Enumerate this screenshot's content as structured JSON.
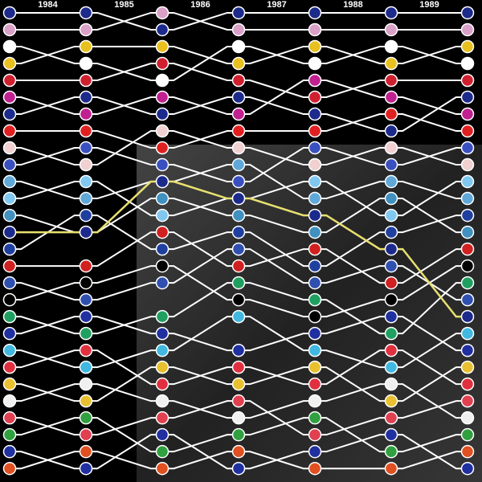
{
  "chart_data": {
    "type": "bump",
    "categories": [
      "1984",
      "1985",
      "1986",
      "1987",
      "1988",
      "1989",
      null
    ],
    "ylim": [
      0.24,
      28.8
    ],
    "y_reversed": true,
    "series": [
      {
        "color": "#ffffff",
        "blade": "#1c2a8c",
        "values": [
          1,
          1,
          2,
          1,
          1,
          1,
          1
        ]
      },
      {
        "color": "#ffffff",
        "blade": "#d9a0c8",
        "values": [
          2,
          2,
          1,
          2,
          2,
          2,
          2
        ]
      },
      {
        "color": "#ffffff",
        "blade": "#ffffff",
        "values": [
          3,
          4,
          5,
          3,
          4,
          3,
          4
        ]
      },
      {
        "color": "#ffffff",
        "blade": "#e8c020",
        "values": [
          4,
          3,
          3,
          4,
          3,
          4,
          3
        ]
      },
      {
        "color": "#ffffff",
        "blade": "#d02030",
        "values": [
          5,
          5,
          4,
          5,
          6,
          5,
          5
        ]
      },
      {
        "color": "#ffffff",
        "blade": "#c02090",
        "values": [
          6,
          7,
          6,
          7,
          5,
          6,
          7
        ]
      },
      {
        "color": "#ffffff",
        "blade": "#1c2a8c",
        "values": [
          7,
          6,
          7,
          6,
          7,
          8,
          6
        ]
      },
      {
        "color": "#ffffff",
        "blade": "#e02020",
        "values": [
          8,
          8,
          9,
          8,
          8,
          7,
          8
        ]
      },
      {
        "color": "#ffffff",
        "blade": "#f0d0d0",
        "values": [
          9,
          10,
          8,
          9,
          10,
          9,
          10
        ]
      },
      {
        "color": "#ffffff",
        "blade": "#3a50c0",
        "values": [
          10,
          9,
          10,
          11,
          9,
          10,
          9
        ]
      },
      {
        "color": "#ffffff",
        "blade": "#60a8d8",
        "values": [
          11,
          12,
          11,
          10,
          12,
          11,
          12
        ]
      },
      {
        "color": "#ffffff",
        "blade": "#80c8f0",
        "values": [
          12,
          11,
          13,
          12,
          11,
          13,
          11
        ]
      },
      {
        "color": "#ffffff",
        "blade": "#4090c0",
        "values": [
          13,
          14,
          12,
          13,
          14,
          12,
          14
        ]
      },
      {
        "color": "#e8e070",
        "blade": "#1c2a8c",
        "values": [
          14,
          14,
          11,
          12,
          13,
          15,
          19
        ]
      },
      {
        "color": "#ffffff",
        "blade": "#2040a0",
        "values": [
          15,
          13,
          15,
          14,
          16,
          14,
          13
        ]
      },
      {
        "color": "#ffffff",
        "blade": "#d02020",
        "values": [
          16,
          16,
          14,
          16,
          15,
          17,
          15
        ]
      },
      {
        "color": "#ffffff",
        "blade": "#3050b0",
        "values": [
          17,
          18,
          17,
          15,
          17,
          16,
          18
        ]
      },
      {
        "color": "#ffffff",
        "blade": "#000000",
        "values": [
          18,
          17,
          16,
          18,
          19,
          18,
          16
        ]
      },
      {
        "color": "#ffffff",
        "blade": "#20a060",
        "values": [
          19,
          20,
          19,
          17,
          18,
          20,
          17
        ]
      },
      {
        "color": "#ffffff",
        "blade": "#2030a0",
        "values": [
          20,
          19,
          20,
          21,
          20,
          19,
          21
        ]
      },
      {
        "color": "#ffffff",
        "blade": "#40b8e0",
        "values": [
          21,
          22,
          21,
          19,
          21,
          22,
          20
        ]
      },
      {
        "color": "#ffffff",
        "blade": "#e03040",
        "values": [
          22,
          21,
          23,
          22,
          23,
          21,
          23
        ]
      },
      {
        "color": "#ffffff",
        "blade": "#e8c030",
        "values": [
          23,
          24,
          22,
          23,
          22,
          24,
          22
        ]
      },
      {
        "color": "#ffffff",
        "blade": "#f0f0f0",
        "values": [
          24,
          23,
          24,
          25,
          24,
          23,
          25
        ]
      },
      {
        "color": "#ffffff",
        "blade": "#e04050",
        "values": [
          25,
          26,
          25,
          24,
          26,
          25,
          24
        ]
      },
      {
        "color": "#ffffff",
        "blade": "#30a040",
        "values": [
          26,
          25,
          27,
          26,
          25,
          27,
          26
        ]
      },
      {
        "color": "#ffffff",
        "blade": "#2030a0",
        "values": [
          27,
          28,
          26,
          28,
          27,
          26,
          28
        ]
      },
      {
        "color": "#ffffff",
        "blade": "#e05020",
        "values": [
          28,
          27,
          28,
          27,
          28,
          28,
          27
        ]
      }
    ]
  }
}
